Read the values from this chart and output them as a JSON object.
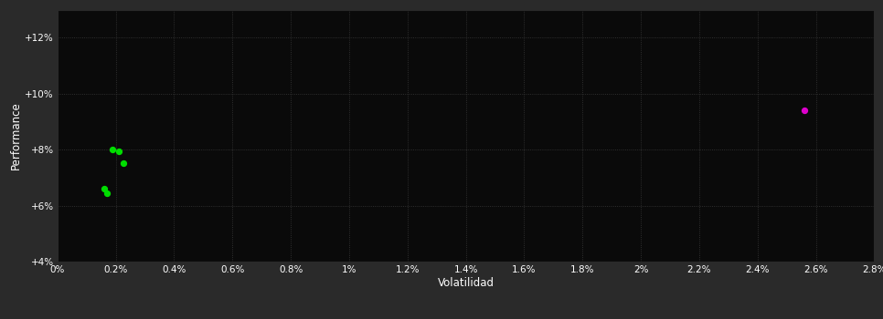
{
  "background_color": "#2a2a2a",
  "plot_bg_color": "#0a0a0a",
  "grid_color": "#3a3a3a",
  "text_color": "#ffffff",
  "xlabel": "Volatilidad",
  "ylabel": "Performance",
  "xlim": [
    0.0,
    0.028
  ],
  "ylim": [
    0.04,
    0.13
  ],
  "yticks": [
    0.04,
    0.06,
    0.08,
    0.1,
    0.12
  ],
  "ytick_labels": [
    "+4%",
    "+6%",
    "+8%",
    "+10%",
    "+12%"
  ],
  "xticks": [
    0.0,
    0.002,
    0.004,
    0.006,
    0.008,
    0.01,
    0.012,
    0.014,
    0.016,
    0.018,
    0.02,
    0.022,
    0.024,
    0.026,
    0.028
  ],
  "xtick_labels": [
    "0%",
    "0.2%",
    "0.4%",
    "0.6%",
    "0.8%",
    "1%",
    "1.2%",
    "1.4%",
    "1.6%",
    "1.8%",
    "2%",
    "2.2%",
    "2.4%",
    "2.6%",
    "2.8%"
  ],
  "green_points": [
    [
      0.0019,
      0.08
    ],
    [
      0.0021,
      0.0795
    ],
    [
      0.00225,
      0.075
    ],
    [
      0.0016,
      0.066
    ],
    [
      0.0017,
      0.0645
    ]
  ],
  "magenta_points": [
    [
      0.0256,
      0.094
    ]
  ],
  "green_color": "#00dd00",
  "magenta_color": "#dd00cc",
  "point_size": 18
}
